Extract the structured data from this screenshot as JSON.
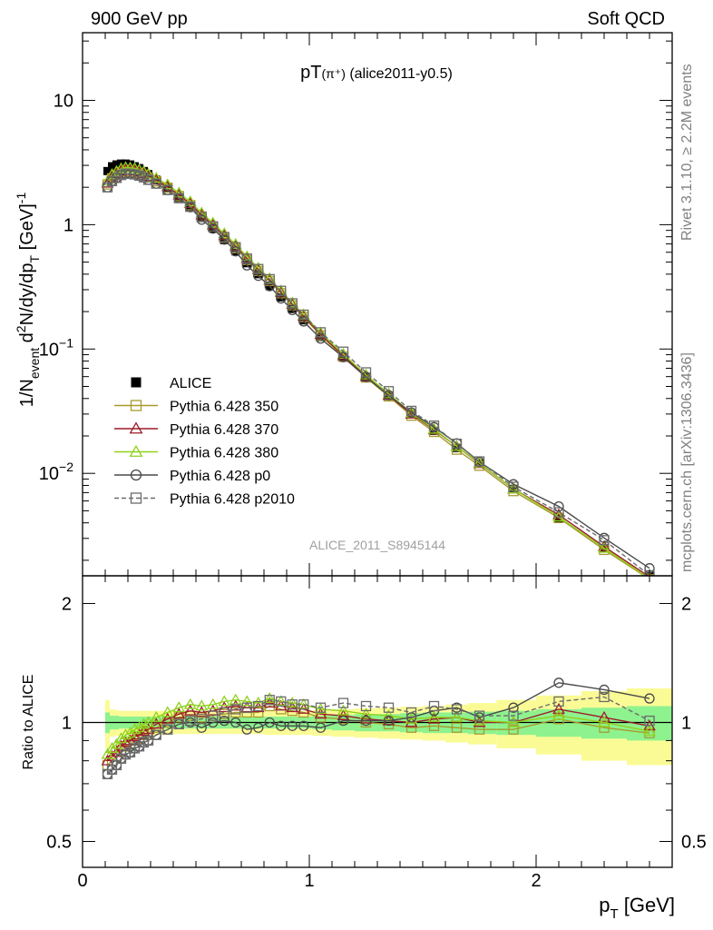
{
  "header": {
    "left": "900 GeV pp",
    "right": "Soft QCD"
  },
  "side_labels": {
    "rivet": "Rivet 3.1.10, ≥ 2.2M events",
    "mcplots": "mcplots.cern.ch [arXiv:1306.3436]"
  },
  "watermark": "ALICE_2011_S8945144",
  "colors": {
    "data": "#000000",
    "py350": "#a89a2f",
    "py370": "#9b1c2a",
    "py380": "#8fd11c",
    "p0": "#4a4a4a",
    "p2010": "#6b6b6b",
    "band_inner": "#8ef28e",
    "band_outer": "#fbfb96"
  },
  "chart_data": [
    {
      "type": "line",
      "panel": "main",
      "title_main": "pT",
      "title_particle": "(π⁺)",
      "title_tag": "(alice2011-y0.5)",
      "ylabel": "1/N_event d²N/dy/dp_T [GeV]⁻¹",
      "ylabel_parts": {
        "a": "1/N",
        "b": "event",
        "c": " d",
        "d": "2",
        "e": "N/dy/dp",
        "f": "T",
        "g": " [GeV]",
        "h": "-1"
      },
      "yscale": "log",
      "xlim": [
        0,
        2.6
      ],
      "ylim": [
        0.0015,
        35
      ],
      "yticks": [
        {
          "v": 10,
          "label": "10"
        },
        {
          "v": 1,
          "label": "1"
        },
        {
          "v": 0.1,
          "label": "10",
          "sup": "−1"
        },
        {
          "v": 0.01,
          "label": "10",
          "sup": "−2"
        }
      ],
      "legend": [
        {
          "key": "data",
          "label": "ALICE"
        },
        {
          "key": "py350",
          "label": "Pythia 6.428 350"
        },
        {
          "key": "py370",
          "label": "Pythia 6.428 370"
        },
        {
          "key": "py380",
          "label": "Pythia 6.428 380"
        },
        {
          "key": "p0",
          "label": "Pythia 6.428 p0"
        },
        {
          "key": "p2010",
          "label": "Pythia 6.428 p2010"
        }
      ],
      "x": [
        0.11,
        0.13,
        0.15,
        0.17,
        0.19,
        0.21,
        0.23,
        0.25,
        0.27,
        0.29,
        0.325,
        0.375,
        0.425,
        0.475,
        0.525,
        0.575,
        0.625,
        0.675,
        0.725,
        0.775,
        0.825,
        0.875,
        0.925,
        0.975,
        1.05,
        1.15,
        1.25,
        1.35,
        1.45,
        1.55,
        1.65,
        1.75,
        1.9,
        2.1,
        2.3,
        2.5
      ],
      "data_values": [
        2.7,
        2.95,
        3.05,
        3.1,
        3.1,
        3.05,
        2.95,
        2.85,
        2.7,
        2.55,
        2.3,
        1.98,
        1.65,
        1.38,
        1.13,
        0.93,
        0.75,
        0.61,
        0.49,
        0.4,
        0.32,
        0.26,
        0.21,
        0.17,
        0.125,
        0.085,
        0.059,
        0.042,
        0.03,
        0.022,
        0.016,
        0.012,
        0.0075,
        0.0043,
        0.0025,
        0.0015
      ],
      "series": [
        {
          "key": "py350",
          "marker": "square",
          "dash": false,
          "ratio": [
            0.78,
            0.8,
            0.82,
            0.85,
            0.87,
            0.88,
            0.9,
            0.91,
            0.93,
            0.94,
            0.97,
            1.0,
            1.03,
            1.04,
            1.03,
            1.04,
            1.05,
            1.06,
            1.06,
            1.06,
            1.1,
            1.08,
            1.07,
            1.06,
            1.03,
            1.02,
            1.0,
            0.99,
            0.97,
            0.98,
            0.97,
            0.96,
            0.96,
            1.02,
            0.97,
            0.94
          ]
        },
        {
          "key": "py370",
          "marker": "triangle",
          "dash": false,
          "ratio": [
            0.8,
            0.82,
            0.84,
            0.87,
            0.89,
            0.9,
            0.92,
            0.93,
            0.95,
            0.96,
            0.99,
            1.02,
            1.05,
            1.07,
            1.06,
            1.07,
            1.09,
            1.1,
            1.09,
            1.09,
            1.12,
            1.1,
            1.09,
            1.08,
            1.05,
            1.04,
            1.02,
            1.01,
            1.0,
            1.02,
            1.03,
            1.0,
            1.0,
            1.08,
            1.03,
            0.98
          ]
        },
        {
          "key": "py380",
          "marker": "triangle",
          "dash": false,
          "ratio": [
            0.83,
            0.86,
            0.88,
            0.91,
            0.93,
            0.94,
            0.96,
            0.97,
            0.99,
            1.0,
            1.03,
            1.06,
            1.09,
            1.11,
            1.1,
            1.11,
            1.13,
            1.14,
            1.13,
            1.12,
            1.15,
            1.13,
            1.12,
            1.11,
            1.08,
            1.07,
            1.05,
            1.04,
            1.02,
            1.03,
            1.03,
            1.01,
            1.0,
            1.04,
            1.0,
            0.95
          ]
        },
        {
          "key": "p0",
          "marker": "circle",
          "dash": false,
          "ratio": [
            0.74,
            0.76,
            0.78,
            0.81,
            0.83,
            0.84,
            0.86,
            0.87,
            0.89,
            0.9,
            0.93,
            0.96,
            0.99,
            1.0,
            0.97,
            1.0,
            1.01,
            1.0,
            0.96,
            0.97,
            1.0,
            0.98,
            0.98,
            0.98,
            0.97,
            1.01,
            1.01,
            1.01,
            1.03,
            1.07,
            1.09,
            1.03,
            1.09,
            1.26,
            1.21,
            1.15
          ]
        },
        {
          "key": "p2010",
          "marker": "square",
          "dash": true,
          "ratio": [
            0.74,
            0.76,
            0.78,
            0.81,
            0.83,
            0.84,
            0.86,
            0.87,
            0.89,
            0.9,
            0.93,
            0.96,
            0.99,
            1.01,
            1.02,
            1.04,
            1.06,
            1.08,
            1.09,
            1.1,
            1.14,
            1.13,
            1.11,
            1.11,
            1.09,
            1.12,
            1.1,
            1.09,
            1.06,
            1.1,
            1.08,
            1.04,
            1.04,
            1.13,
            1.16,
            1.01
          ]
        }
      ]
    },
    {
      "type": "line",
      "panel": "ratio",
      "ylabel": "Ratio to ALICE",
      "xlabel_main": "p",
      "xlabel_sub": "T",
      "xlabel_unit": " [GeV]",
      "yscale": "log",
      "xlim": [
        0,
        2.6
      ],
      "ylim": [
        0.43,
        2.35
      ],
      "yticks": [
        {
          "v": 2,
          "label": "2"
        },
        {
          "v": 1,
          "label": "1"
        },
        {
          "v": 0.5,
          "label": "0.5"
        }
      ],
      "xticks": [
        {
          "v": 0,
          "label": "0"
        },
        {
          "v": 1,
          "label": "1"
        },
        {
          "v": 2,
          "label": "2"
        }
      ],
      "band_x": [
        0.11,
        0.13,
        0.15,
        0.17,
        0.19,
        0.21,
        0.23,
        0.25,
        0.27,
        0.29,
        0.325,
        0.375,
        0.425,
        0.475,
        0.525,
        0.575,
        0.625,
        0.675,
        0.725,
        0.775,
        0.825,
        0.875,
        0.925,
        0.975,
        1.05,
        1.15,
        1.25,
        1.35,
        1.45,
        1.55,
        1.65,
        1.75,
        1.9,
        2.1,
        2.3,
        2.5
      ],
      "band_inner": [
        0.06,
        0.04,
        0.04,
        0.035,
        0.035,
        0.035,
        0.035,
        0.035,
        0.035,
        0.035,
        0.035,
        0.035,
        0.035,
        0.035,
        0.035,
        0.035,
        0.035,
        0.035,
        0.035,
        0.035,
        0.035,
        0.035,
        0.035,
        0.035,
        0.04,
        0.045,
        0.05,
        0.05,
        0.055,
        0.06,
        0.06,
        0.065,
        0.07,
        0.08,
        0.09,
        0.1
      ],
      "band_outer": [
        0.14,
        0.08,
        0.075,
        0.07,
        0.07,
        0.07,
        0.07,
        0.07,
        0.07,
        0.07,
        0.07,
        0.07,
        0.065,
        0.065,
        0.065,
        0.065,
        0.065,
        0.065,
        0.065,
        0.065,
        0.07,
        0.07,
        0.07,
        0.07,
        0.075,
        0.08,
        0.085,
        0.09,
        0.095,
        0.1,
        0.11,
        0.12,
        0.14,
        0.17,
        0.2,
        0.22
      ]
    }
  ]
}
